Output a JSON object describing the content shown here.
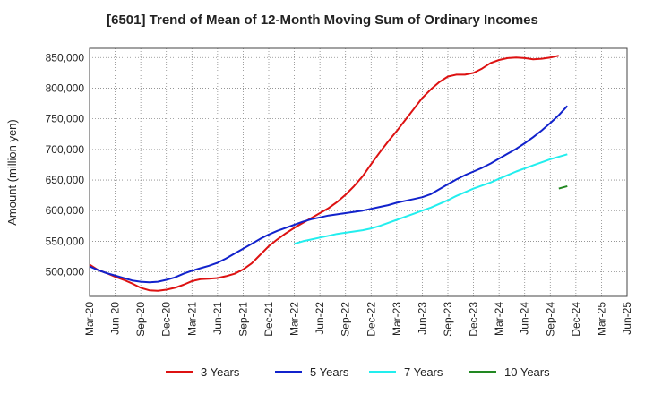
{
  "chart_data": {
    "type": "line",
    "title": "[6501]  Trend of Mean of 12-Month Moving Sum of Ordinary Incomes",
    "xlabel": "",
    "ylabel": "Amount (million yen)",
    "ylim": [
      460000,
      865000
    ],
    "yticks": [
      500000,
      550000,
      600000,
      650000,
      700000,
      750000,
      800000,
      850000
    ],
    "ytick_labels": [
      "500,000",
      "550,000",
      "600,000",
      "650,000",
      "700,000",
      "750,000",
      "800,000",
      "850,000"
    ],
    "xticks": [
      "Mar-20",
      "Jun-20",
      "Sep-20",
      "Dec-20",
      "Mar-21",
      "Jun-21",
      "Sep-21",
      "Dec-21",
      "Mar-22",
      "Jun-22",
      "Sep-22",
      "Dec-22",
      "Mar-23",
      "Jun-23",
      "Sep-23",
      "Dec-23",
      "Mar-24",
      "Jun-24",
      "Sep-24",
      "Dec-24",
      "Mar-25",
      "Jun-25"
    ],
    "grid": true,
    "legend_position": "bottom",
    "series": [
      {
        "name": "3 Years",
        "color": "#dd1111",
        "start_index": 0,
        "values": [
          512000,
          503000,
          498000,
          492000,
          487000,
          481000,
          474000,
          470000,
          469000,
          471000,
          474000,
          479000,
          485000,
          488000,
          489000,
          490000,
          493000,
          497000,
          504000,
          514000,
          528000,
          542000,
          553000,
          563000,
          572000,
          580000,
          588000,
          596000,
          604000,
          614000,
          626000,
          640000,
          656000,
          676000,
          695000,
          713000,
          730000,
          748000,
          766000,
          784000,
          798000,
          810000,
          819000,
          822000,
          822000,
          825000,
          832000,
          841000,
          846000,
          849000,
          850000,
          849000,
          847000,
          848000,
          850000,
          853000
        ]
      },
      {
        "name": "5 Years",
        "color": "#1122cc",
        "start_index": 0,
        "values": [
          509000,
          503000,
          498000,
          494000,
          490000,
          486000,
          484000,
          483000,
          484000,
          487000,
          491000,
          497000,
          502000,
          506000,
          510000,
          515000,
          522000,
          530000,
          538000,
          546000,
          554000,
          561000,
          567000,
          572000,
          577000,
          582000,
          586000,
          589000,
          592000,
          594000,
          596000,
          598000,
          600000,
          603000,
          606000,
          609000,
          613000,
          616000,
          619000,
          622000,
          627000,
          635000,
          643000,
          651000,
          658000,
          664000,
          670000,
          677000,
          685000,
          693000,
          701000,
          710000,
          720000,
          731000,
          743000,
          756000,
          771000
        ]
      },
      {
        "name": "7 Years",
        "color": "#22eeee",
        "start_index": 24,
        "values": [
          546000,
          550000,
          553000,
          556000,
          559000,
          562000,
          564000,
          566000,
          568000,
          571000,
          575000,
          580000,
          585000,
          590000,
          595000,
          600000,
          605000,
          611000,
          617000,
          624000,
          630000,
          636000,
          641000,
          646000,
          652000,
          658000,
          664000,
          669000,
          674000,
          679000,
          684000,
          688000,
          692000
        ]
      },
      {
        "name": "10 Years",
        "color": "#228822",
        "start_index": 55,
        "values": [
          636000,
          640000
        ]
      }
    ]
  }
}
